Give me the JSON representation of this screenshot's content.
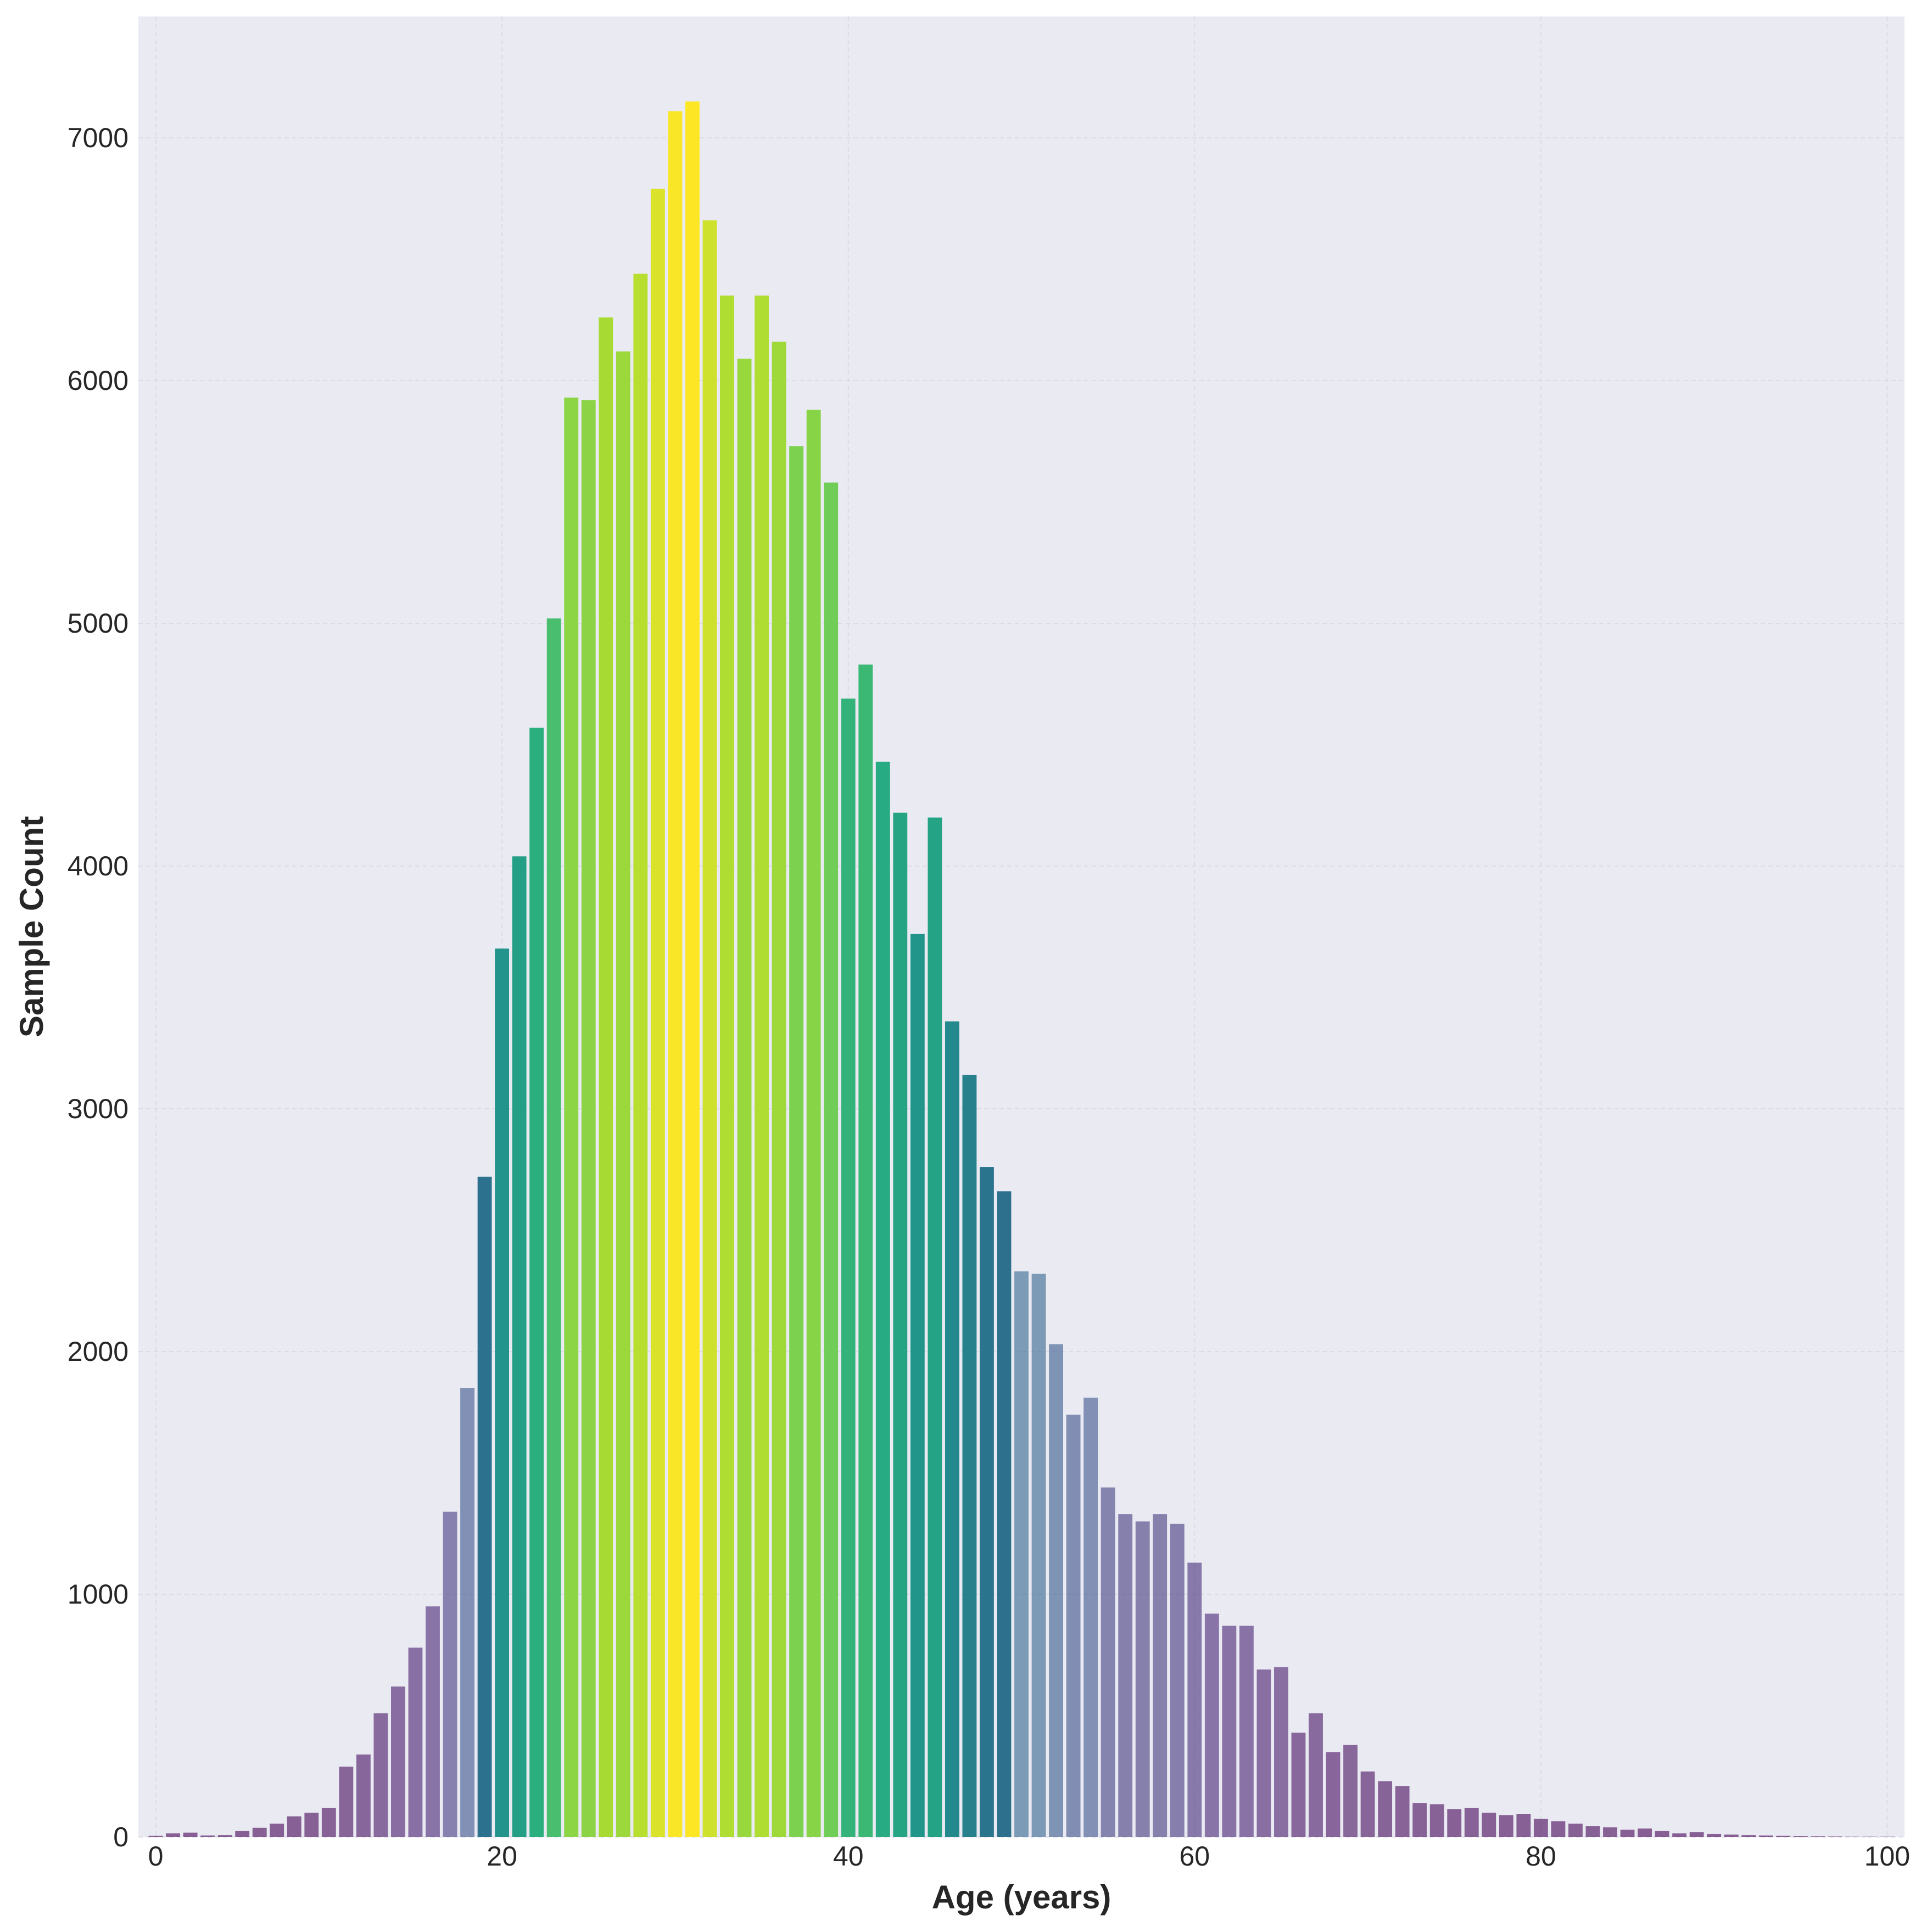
{
  "chart_data": {
    "type": "bar",
    "title": "",
    "xlabel": "Age (years)",
    "ylabel": "Sample Count",
    "xlim": [
      -1,
      101
    ],
    "ylim": [
      0,
      7500
    ],
    "x_ticks": [
      0,
      20,
      40,
      60,
      80,
      100
    ],
    "y_ticks": [
      0,
      1000,
      2000,
      3000,
      4000,
      5000,
      6000,
      7000
    ],
    "grid": true,
    "background_color": "#EAEAF2",
    "colormap": "viridis",
    "x": [
      0,
      1,
      2,
      3,
      4,
      5,
      6,
      7,
      8,
      9,
      10,
      11,
      12,
      13,
      14,
      15,
      16,
      17,
      18,
      19,
      20,
      21,
      22,
      23,
      24,
      25,
      26,
      27,
      28,
      29,
      30,
      31,
      32,
      33,
      34,
      35,
      36,
      37,
      38,
      39,
      40,
      41,
      42,
      43,
      44,
      45,
      46,
      47,
      48,
      49,
      50,
      51,
      52,
      53,
      54,
      55,
      56,
      57,
      58,
      59,
      60,
      61,
      62,
      63,
      64,
      65,
      66,
      67,
      68,
      69,
      70,
      71,
      72,
      73,
      74,
      75,
      76,
      77,
      78,
      79,
      80,
      81,
      82,
      83,
      84,
      85,
      86,
      87,
      88,
      89,
      90,
      91,
      92,
      93,
      94,
      95,
      96,
      97,
      98,
      99,
      100
    ],
    "values": [
      5,
      15,
      18,
      6,
      8,
      25,
      38,
      55,
      85,
      100,
      120,
      290,
      340,
      510,
      620,
      780,
      950,
      1340,
      1850,
      2720,
      3660,
      4040,
      4570,
      5020,
      5930,
      5920,
      6260,
      6120,
      6440,
      6790,
      7110,
      7150,
      6660,
      6350,
      6090,
      6350,
      6160,
      5730,
      5880,
      5580,
      4690,
      4830,
      4430,
      4220,
      3720,
      4200,
      3360,
      3140,
      2760,
      2660,
      2330,
      2320,
      2030,
      1740,
      1810,
      1440,
      1330,
      1300,
      1330,
      1290,
      1130,
      920,
      870,
      870,
      690,
      700,
      430,
      510,
      350,
      380,
      270,
      230,
      210,
      140,
      135,
      115,
      120,
      100,
      90,
      95,
      75,
      65,
      55,
      45,
      40,
      30,
      35,
      25,
      15,
      20,
      12,
      10,
      8,
      6,
      5,
      4,
      3,
      2,
      1,
      1,
      1
    ]
  }
}
